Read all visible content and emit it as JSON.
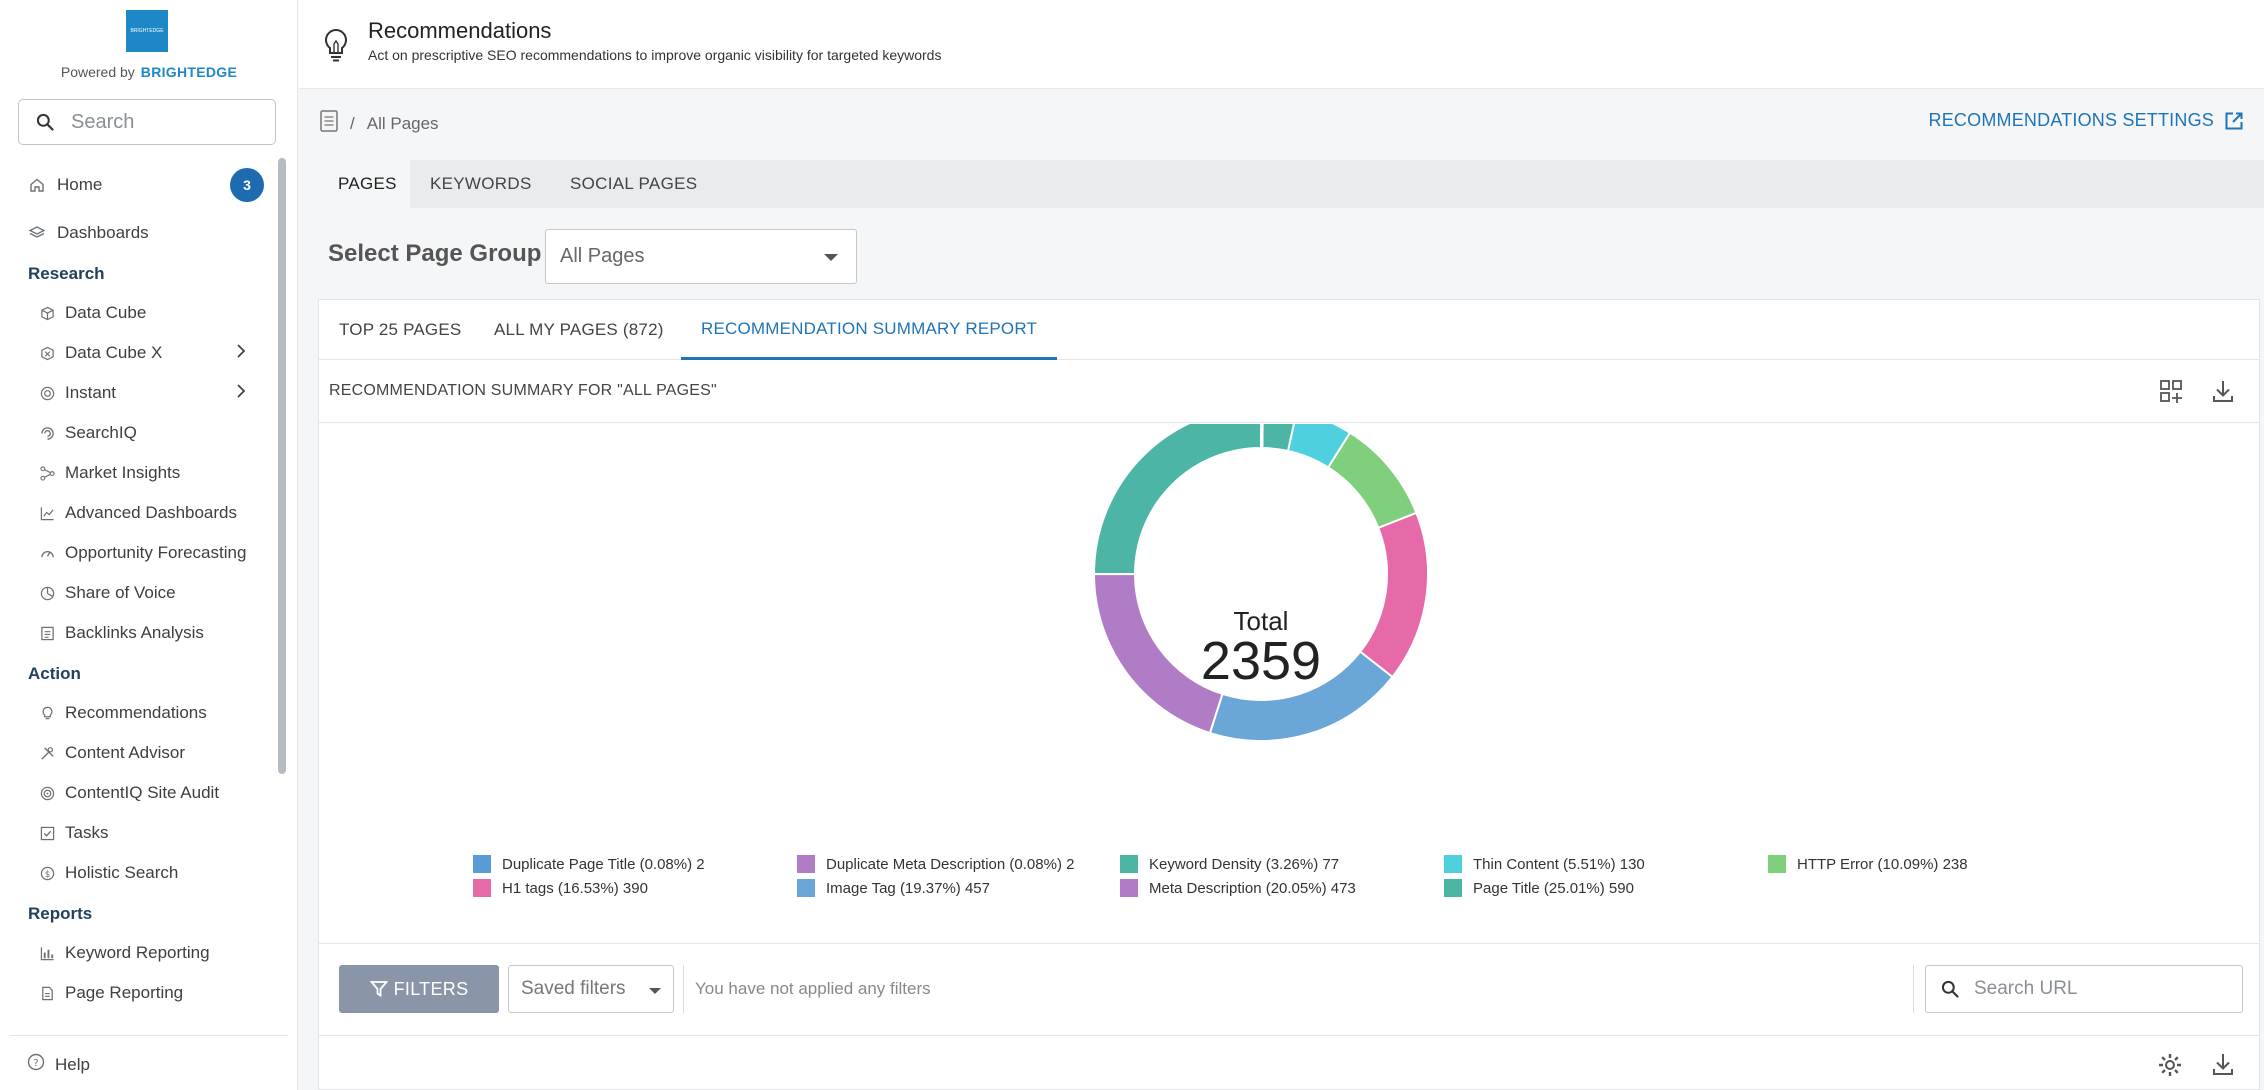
{
  "sidebar": {
    "logo_text": "BRIGHTEDGE",
    "powered_by": "Powered by",
    "brand": "BRIGHTEDGE",
    "search_placeholder": "Search",
    "home": {
      "label": "Home",
      "badge": "3"
    },
    "dashboards": "Dashboards",
    "sections": {
      "research": "Research",
      "action": "Action",
      "reports": "Reports"
    },
    "research_items": [
      "Data Cube",
      "Data Cube X",
      "Instant",
      "SearchIQ",
      "Market Insights",
      "Advanced Dashboards",
      "Opportunity Forecasting",
      "Share of Voice",
      "Backlinks Analysis"
    ],
    "action_items": [
      "Recommendations",
      "Content Advisor",
      "ContentIQ Site Audit",
      "Tasks",
      "Holistic Search"
    ],
    "reports_items": [
      "Keyword Reporting",
      "Page Reporting"
    ],
    "help": "Help"
  },
  "header": {
    "title": "Recommendations",
    "subtitle": "Act on prescriptive SEO recommendations to improve organic visibility for targeted keywords"
  },
  "breadcrumb": {
    "separator": "/",
    "current": "All Pages"
  },
  "settings_link": "RECOMMENDATIONS SETTINGS",
  "tabs": [
    "PAGES",
    "KEYWORDS",
    "SOCIAL PAGES"
  ],
  "page_group": {
    "label": "Select Page Group",
    "selected": "All Pages"
  },
  "sub_tabs": [
    "TOP 25 PAGES",
    "ALL MY PAGES (872)",
    "RECOMMENDATION SUMMARY REPORT"
  ],
  "summary_title": "RECOMMENDATION SUMMARY FOR \"ALL PAGES\"",
  "donut": {
    "total_label": "Total",
    "total_value": "2359"
  },
  "legend": [
    "Duplicate Page Title (0.08%) 2",
    "Duplicate Meta Description (0.08%) 2",
    "Keyword Density (3.26%) 77",
    "Thin Content (5.51%) 130",
    "HTTP Error (10.09%) 238",
    "H1 tags (16.53%) 390",
    "Image Tag (19.37%) 457",
    "Meta Description (20.05%) 473",
    "Page Title (25.01%) 590"
  ],
  "chart_data": {
    "type": "pie",
    "categories": [
      "Duplicate Page Title",
      "Duplicate Meta Description",
      "Keyword Density",
      "Thin Content",
      "HTTP Error",
      "H1 tags",
      "Image Tag",
      "Meta Description",
      "Page Title"
    ],
    "values": [
      2,
      2,
      77,
      130,
      238,
      390,
      457,
      473,
      590
    ],
    "colors": [
      "#5b9bd5",
      "#b07cc6",
      "#4cb5a5",
      "#4fd0df",
      "#7fcf7c",
      "#e76aa8",
      "#6aa6d8",
      "#b07cc6",
      "#4cb5a5"
    ],
    "total": 2359
  },
  "filters": {
    "button": "FILTERS",
    "saved": "Saved filters",
    "status": "You have not applied any filters",
    "search_placeholder": "Search URL"
  }
}
